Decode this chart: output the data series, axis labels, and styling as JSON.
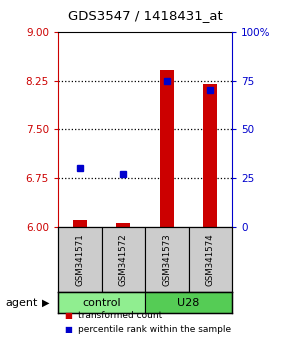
{
  "title": "GDS3547 / 1418431_at",
  "samples": [
    "GSM341571",
    "GSM341572",
    "GSM341573",
    "GSM341574"
  ],
  "transformed_counts": [
    6.1,
    6.05,
    8.42,
    8.2
  ],
  "percentile_ranks": [
    30,
    27,
    75,
    70
  ],
  "ylim_left": [
    6,
    9
  ],
  "yticks_left": [
    6,
    6.75,
    7.5,
    8.25,
    9
  ],
  "ylim_right": [
    0,
    100
  ],
  "yticks_right": [
    0,
    25,
    50,
    75,
    100
  ],
  "bar_color": "#cc0000",
  "dot_color": "#0000cc",
  "groups": [
    {
      "label": "control",
      "samples": [
        0,
        1
      ],
      "color": "#90EE90"
    },
    {
      "label": "U28",
      "samples": [
        2,
        3
      ],
      "color": "#55CC55"
    }
  ],
  "sample_box_color": "#cccccc",
  "legend_red_label": "transformed count",
  "legend_blue_label": "percentile rank within the sample",
  "agent_label": "agent",
  "left_axis_color": "#cc0000",
  "right_axis_color": "#0000cc",
  "bar_width": 0.32,
  "dotted_ticks": [
    6.75,
    7.5,
    8.25
  ]
}
